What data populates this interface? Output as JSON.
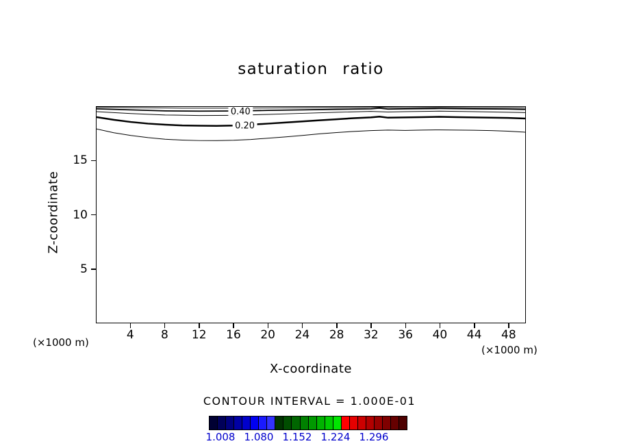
{
  "chart_data": {
    "type": "contour",
    "title": "saturation ratio",
    "xlabel": "X-coordinate",
    "ylabel": "Z-coordinate",
    "x_unit_label_left": "(×1000 m)",
    "x_unit_label_right": "(×1000 m)",
    "xlim": [
      0,
      50
    ],
    "ylim": [
      0,
      20
    ],
    "x_ticks": [
      4,
      8,
      12,
      16,
      20,
      24,
      28,
      32,
      36,
      40,
      44,
      48
    ],
    "y_ticks": [
      5,
      10,
      15
    ],
    "grid": false,
    "contour_interval_text": "CONTOUR INTERVAL = 1.000E-01",
    "contour_levels": [
      0.1,
      0.2,
      0.3,
      0.4,
      0.5
    ],
    "contour_labels": [
      {
        "text": "0.40",
        "x": 16.8,
        "z": 19.62
      },
      {
        "text": "0.20",
        "x": 17.3,
        "z": 18.3
      }
    ],
    "contours": [
      {
        "level": 0.1,
        "width": 1,
        "points": [
          [
            0,
            17.95
          ],
          [
            2,
            17.6
          ],
          [
            4,
            17.35
          ],
          [
            6,
            17.15
          ],
          [
            8,
            17.0
          ],
          [
            10,
            16.92
          ],
          [
            12,
            16.88
          ],
          [
            14,
            16.87
          ],
          [
            16,
            16.9
          ],
          [
            18,
            16.98
          ],
          [
            20,
            17.1
          ],
          [
            22,
            17.22
          ],
          [
            24,
            17.35
          ],
          [
            26,
            17.5
          ],
          [
            28,
            17.62
          ],
          [
            30,
            17.72
          ],
          [
            32,
            17.8
          ],
          [
            34,
            17.85
          ],
          [
            36,
            17.82
          ],
          [
            38,
            17.85
          ],
          [
            40,
            17.87
          ],
          [
            42,
            17.85
          ],
          [
            44,
            17.83
          ],
          [
            46,
            17.8
          ],
          [
            48,
            17.75
          ],
          [
            50,
            17.65
          ]
        ]
      },
      {
        "level": 0.2,
        "width": 2.5,
        "points": [
          [
            0,
            19.05
          ],
          [
            2,
            18.8
          ],
          [
            4,
            18.6
          ],
          [
            6,
            18.45
          ],
          [
            8,
            18.35
          ],
          [
            10,
            18.28
          ],
          [
            12,
            18.25
          ],
          [
            14,
            18.24
          ],
          [
            16,
            18.27
          ],
          [
            18,
            18.35
          ],
          [
            20,
            18.45
          ],
          [
            22,
            18.55
          ],
          [
            24,
            18.65
          ],
          [
            26,
            18.75
          ],
          [
            28,
            18.85
          ],
          [
            30,
            18.95
          ],
          [
            32,
            19.02
          ],
          [
            33,
            19.1
          ],
          [
            34,
            19.0
          ],
          [
            36,
            19.02
          ],
          [
            38,
            19.05
          ],
          [
            40,
            19.08
          ],
          [
            42,
            19.05
          ],
          [
            44,
            19.02
          ],
          [
            46,
            19.0
          ],
          [
            48,
            18.98
          ],
          [
            50,
            18.92
          ]
        ]
      },
      {
        "level": 0.3,
        "width": 1,
        "points": [
          [
            0,
            19.55
          ],
          [
            4,
            19.38
          ],
          [
            8,
            19.25
          ],
          [
            12,
            19.2
          ],
          [
            16,
            19.22
          ],
          [
            20,
            19.3
          ],
          [
            24,
            19.4
          ],
          [
            28,
            19.5
          ],
          [
            32,
            19.58
          ],
          [
            34,
            19.52
          ],
          [
            36,
            19.55
          ],
          [
            40,
            19.6
          ],
          [
            44,
            19.55
          ],
          [
            48,
            19.5
          ],
          [
            50,
            19.47
          ]
        ]
      },
      {
        "level": 0.4,
        "width": 1.8,
        "points": [
          [
            0,
            19.82
          ],
          [
            4,
            19.72
          ],
          [
            8,
            19.63
          ],
          [
            12,
            19.6
          ],
          [
            16,
            19.62
          ],
          [
            20,
            19.67
          ],
          [
            24,
            19.72
          ],
          [
            28,
            19.77
          ],
          [
            32,
            19.82
          ],
          [
            33,
            19.88
          ],
          [
            34,
            19.8
          ],
          [
            36,
            19.82
          ],
          [
            40,
            19.85
          ],
          [
            44,
            19.82
          ],
          [
            48,
            19.79
          ],
          [
            50,
            19.76
          ]
        ]
      },
      {
        "level": 0.5,
        "width": 1,
        "points": [
          [
            0,
            19.96
          ],
          [
            5,
            19.92
          ],
          [
            10,
            19.88
          ],
          [
            15,
            19.88
          ],
          [
            20,
            19.9
          ],
          [
            25,
            19.92
          ],
          [
            30,
            19.94
          ],
          [
            33,
            19.97
          ],
          [
            36,
            19.93
          ],
          [
            40,
            19.95
          ],
          [
            44,
            19.93
          ],
          [
            48,
            19.92
          ],
          [
            50,
            19.9
          ]
        ]
      }
    ],
    "colorbar": {
      "tick_labels": [
        "1.008",
        "1.080",
        "1.152",
        "1.224",
        "1.296"
      ],
      "label_color": "#0000cc",
      "colors": [
        "#000033",
        "#000059",
        "#00007f",
        "#0000a5",
        "#0000cc",
        "#0000f2",
        "#1a1aff",
        "#3333ff",
        "#003300",
        "#004d00",
        "#006600",
        "#008000",
        "#009900",
        "#00b300",
        "#00cc00",
        "#00e600",
        "#ff0000",
        "#e60000",
        "#cc0000",
        "#b30000",
        "#990000",
        "#800000",
        "#660000",
        "#4d0000"
      ]
    }
  }
}
